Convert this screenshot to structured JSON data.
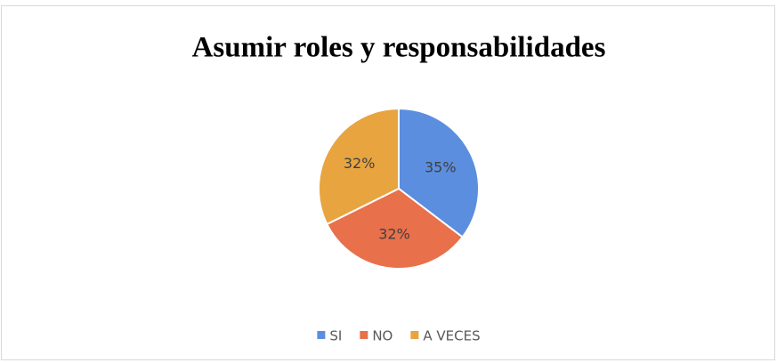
{
  "chart_data": {
    "type": "pie",
    "title": "Asumir roles y responsabilidades",
    "categories": [
      "SI",
      "NO",
      "A VECES"
    ],
    "values": [
      35,
      32,
      32
    ],
    "value_labels": [
      "35%",
      "32%",
      "32%"
    ],
    "colors": [
      "#5b8ede",
      "#e8704a",
      "#e8a43f"
    ],
    "legend": "bottom"
  }
}
